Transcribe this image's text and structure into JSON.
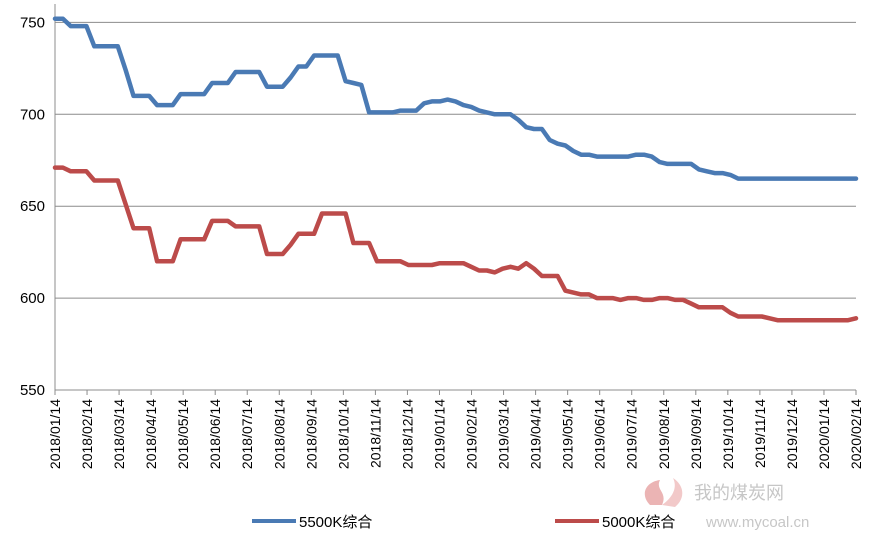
{
  "chart_data": {
    "type": "line",
    "title": "",
    "xlabel": "",
    "ylabel": "",
    "ylim": [
      550,
      760
    ],
    "yticks": [
      550,
      600,
      650,
      700,
      750
    ],
    "grid": true,
    "legend_position": "bottom",
    "x": [
      "2018/01/14",
      "2018/01/21",
      "2018/01/28",
      "2018/02/04",
      "2018/02/11",
      "2018/02/14",
      "2018/02/21",
      "2018/02/28",
      "2018/03/07",
      "2018/03/14",
      "2018/03/21",
      "2018/03/28",
      "2018/04/04",
      "2018/04/11",
      "2018/04/14",
      "2018/04/21",
      "2018/04/28",
      "2018/05/05",
      "2018/05/14",
      "2018/05/21",
      "2018/05/28",
      "2018/06/04",
      "2018/06/14",
      "2018/06/21",
      "2018/06/28",
      "2018/07/05",
      "2018/07/14",
      "2018/07/21",
      "2018/07/28",
      "2018/08/04",
      "2018/08/14",
      "2018/08/21",
      "2018/08/28",
      "2018/09/04",
      "2018/09/14",
      "2018/09/21",
      "2018/09/28",
      "2018/10/05",
      "2018/10/14",
      "2018/10/21",
      "2018/10/28",
      "2018/11/04",
      "2018/11/14",
      "2018/11/21",
      "2018/11/28",
      "2018/12/05",
      "2018/12/14",
      "2018/12/21",
      "2018/12/28",
      "2019/01/04",
      "2019/01/14",
      "2019/01/21",
      "2019/01/28",
      "2019/02/04",
      "2019/02/14",
      "2019/02/21",
      "2019/02/28",
      "2019/03/07",
      "2019/03/14",
      "2019/03/21",
      "2019/03/28",
      "2019/04/04",
      "2019/04/14",
      "2019/04/21",
      "2019/04/28",
      "2019/05/05",
      "2019/05/14",
      "2019/05/21",
      "2019/05/28",
      "2019/06/04",
      "2019/06/14",
      "2019/06/21",
      "2019/06/28",
      "2019/07/05",
      "2019/07/14",
      "2019/07/21",
      "2019/07/28",
      "2019/08/04",
      "2019/08/14",
      "2019/08/21",
      "2019/08/28",
      "2019/09/04",
      "2019/09/14",
      "2019/09/21",
      "2019/09/28",
      "2019/10/05",
      "2019/10/14",
      "2019/10/21",
      "2019/10/28",
      "2019/11/04",
      "2019/11/14",
      "2019/11/21",
      "2019/11/28",
      "2019/12/05",
      "2019/12/14",
      "2019/12/21",
      "2019/12/28",
      "2020/01/04",
      "2020/01/14",
      "2020/01/21",
      "2020/01/28",
      "2020/02/04",
      "2020/02/14"
    ],
    "xtick_labels": [
      "2018/01/14",
      "2018/02/14",
      "2018/03/14",
      "2018/04/14",
      "2018/05/14",
      "2018/06/14",
      "2018/07/14",
      "2018/08/14",
      "2018/09/14",
      "2018/10/14",
      "2018/11/14",
      "2018/12/14",
      "2019/01/14",
      "2019/02/14",
      "2019/03/14",
      "2019/04/14",
      "2019/05/14",
      "2019/06/14",
      "2019/07/14",
      "2019/08/14",
      "2019/09/14",
      "2019/10/14",
      "2019/11/14",
      "2019/12/14",
      "2020/01/14",
      "2020/02/14"
    ],
    "series": [
      {
        "name": "5500K综合",
        "color": "#4a7ab4",
        "values": [
          752,
          752,
          748,
          748,
          748,
          737,
          737,
          737,
          737,
          724,
          710,
          710,
          710,
          705,
          705,
          705,
          711,
          711,
          711,
          711,
          717,
          717,
          717,
          723,
          723,
          723,
          723,
          715,
          715,
          715,
          720,
          726,
          726,
          732,
          732,
          732,
          732,
          718,
          717,
          716,
          701,
          701,
          701,
          701,
          702,
          702,
          702,
          706,
          707,
          707,
          708,
          707,
          705,
          704,
          702,
          701,
          700,
          700,
          700,
          697,
          693,
          692,
          692,
          686,
          684,
          683,
          680,
          678,
          678,
          677,
          677,
          677,
          677,
          677,
          678,
          678,
          677,
          674,
          673,
          673,
          673,
          673,
          670,
          669,
          668,
          668,
          667,
          665,
          665,
          665,
          665,
          665,
          665,
          665,
          665,
          665,
          665,
          665,
          665,
          665,
          665,
          665,
          665
        ],
        "values_note": ""
      },
      {
        "name": "5000K综合",
        "color": "#bc4b4a",
        "values": [
          671,
          671,
          669,
          669,
          669,
          664,
          664,
          664,
          664,
          651,
          638,
          638,
          638,
          620,
          620,
          620,
          632,
          632,
          632,
          632,
          642,
          642,
          642,
          639,
          639,
          639,
          639,
          624,
          624,
          624,
          629,
          635,
          635,
          635,
          646,
          646,
          646,
          646,
          630,
          630,
          630,
          620,
          620,
          620,
          620,
          618,
          618,
          618,
          618,
          619,
          619,
          619,
          619,
          617,
          615,
          615,
          614,
          616,
          617,
          616,
          619,
          616,
          612,
          612,
          612,
          604,
          603,
          602,
          602,
          600,
          600,
          600,
          599,
          600,
          600,
          599,
          599,
          600,
          600,
          599,
          599,
          597,
          595,
          595,
          595,
          595,
          592,
          590,
          590,
          590,
          590,
          589,
          588,
          588,
          588,
          588,
          588,
          588,
          588,
          588,
          588,
          588,
          589
        ],
        "values_note": ""
      }
    ]
  },
  "legend": {
    "items": [
      {
        "label": "5500K综合",
        "color": "#4a7ab4"
      },
      {
        "label": "5000K综合",
        "color": "#bc4b4a"
      }
    ]
  },
  "watermark": {
    "site_name": "我的煤炭网",
    "url": "www.mycoal.cn"
  }
}
